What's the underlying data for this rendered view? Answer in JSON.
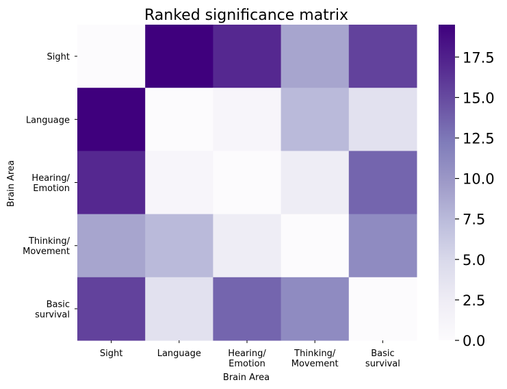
{
  "chart_data": {
    "type": "heatmap",
    "title": "Ranked significance matrix",
    "xlabel": "Brain Area",
    "ylabel": "Brain Area",
    "x_categories": [
      [
        "Sight"
      ],
      [
        "Language"
      ],
      [
        "Hearing/",
        "Emotion"
      ],
      [
        "Thinking/",
        "Movement"
      ],
      [
        "Basic",
        "survival"
      ]
    ],
    "y_categories": [
      [
        "Sight"
      ],
      [
        "Language"
      ],
      [
        "Hearing/",
        "Emotion"
      ],
      [
        "Thinking/",
        "Movement"
      ],
      [
        "Basic",
        "survival"
      ]
    ],
    "values": [
      [
        0,
        19.5,
        17.0,
        9.0,
        15.5
      ],
      [
        19.5,
        0,
        1.0,
        7.5,
        4.0
      ],
      [
        17.0,
        1.0,
        0,
        2.5,
        13.5
      ],
      [
        9.0,
        7.5,
        2.5,
        0,
        11.0
      ],
      [
        15.5,
        4.0,
        13.5,
        11.0,
        0
      ]
    ],
    "colormap": "Purples",
    "colorbar": {
      "range": [
        0,
        19.5
      ],
      "ticks": [
        0.0,
        2.5,
        5.0,
        7.5,
        10.0,
        12.5,
        15.0,
        17.5
      ],
      "tick_labels": [
        "0.0",
        "2.5",
        "5.0",
        "7.5",
        "10.0",
        "12.5",
        "15.0",
        "17.5"
      ]
    },
    "grid": false
  }
}
